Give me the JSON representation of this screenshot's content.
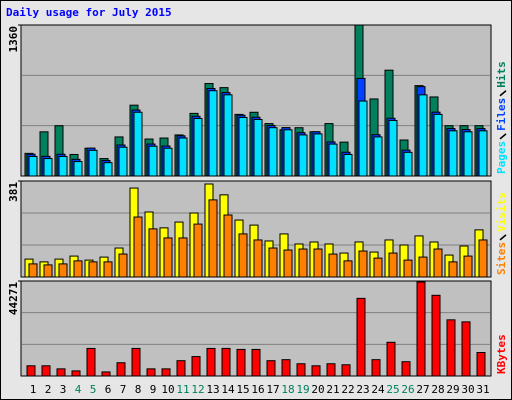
{
  "chart_data": [
    {
      "type": "bar",
      "title": "Daily usage for July 2015",
      "ylim": [
        0,
        1360
      ],
      "yticks": [
        1360
      ],
      "series": [
        {
          "name": "Hits",
          "color": "#00805c",
          "values": [
            204,
            398,
            453,
            194,
            250,
            157,
            352,
            638,
            333,
            342,
            370,
            564,
            833,
            796,
            555,
            574,
            472,
            416,
            435,
            398,
            472,
            305,
            1360,
            694,
            953,
            324,
            814,
            712,
            453,
            453,
            453
          ]
        },
        {
          "name": "Files",
          "color": "#0040ff",
          "values": [
            196,
            177,
            196,
            150,
            251,
            140,
            279,
            594,
            288,
            270,
            362,
            538,
            788,
            751,
            547,
            529,
            455,
            436,
            390,
            399,
            307,
            214,
            879,
            372,
            520,
            233,
            805,
            575,
            427,
            418,
            427
          ]
        },
        {
          "name": "Pages",
          "color": "#00e0ff",
          "values": [
            176,
            157,
            176,
            130,
            231,
            120,
            259,
            574,
            268,
            250,
            342,
            518,
            768,
            731,
            527,
            509,
            435,
            416,
            370,
            379,
            287,
            194,
            675,
            352,
            500,
            213,
            731,
            555,
            407,
            398,
            407
          ]
        }
      ]
    },
    {
      "type": "bar",
      "ylim": [
        0,
        381
      ],
      "yticks": [
        381
      ],
      "series": [
        {
          "name": "Visits",
          "color": "#ffff00",
          "values": [
            71,
            60,
            71,
            83,
            67,
            79,
            115,
            353,
            258,
            195,
            218,
            254,
            369,
            326,
            226,
            206,
            143,
            171,
            131,
            139,
            131,
            95,
            139,
            99,
            147,
            127,
            163,
            139,
            87,
            123,
            187
          ]
        },
        {
          "name": "Sites",
          "color": "#ff8000",
          "values": [
            52,
            48,
            52,
            64,
            60,
            60,
            91,
            238,
            191,
            155,
            155,
            210,
            306,
            246,
            171,
            147,
            115,
            107,
            111,
            111,
            91,
            64,
            103,
            75,
            95,
            67,
            79,
            111,
            60,
            83,
            147
          ]
        }
      ]
    },
    {
      "type": "bar",
      "ylim": [
        0,
        44271
      ],
      "yticks": [
        44271
      ],
      "categories": [
        "1",
        "2",
        "3",
        "4",
        "5",
        "6",
        "7",
        "8",
        "9",
        "10",
        "11",
        "12",
        "13",
        "14",
        "15",
        "16",
        "17",
        "18",
        "19",
        "20",
        "21",
        "22",
        "23",
        "24",
        "25",
        "26",
        "27",
        "28",
        "29",
        "30",
        "31"
      ],
      "category_colors": [
        "#000000",
        "#000000",
        "#000000",
        "#00805c",
        "#00805c",
        "#000000",
        "#000000",
        "#000000",
        "#000000",
        "#000000",
        "#00805c",
        "#00805c",
        "#000000",
        "#000000",
        "#000000",
        "#000000",
        "#000000",
        "#00805c",
        "#00805c",
        "#000000",
        "#000000",
        "#000000",
        "#000000",
        "#000000",
        "#00805c",
        "#00805c",
        "#000000",
        "#000000",
        "#000000",
        "#000000",
        "#000000"
      ],
      "series": [
        {
          "name": "KBytes",
          "color": "#ff0000",
          "values": [
            4760,
            4760,
            3332,
            2380,
            12852,
            1904,
            6188,
            12852,
            3332,
            3332,
            7140,
            9044,
            12852,
            12852,
            12376,
            12376,
            7140,
            7616,
            5712,
            4760,
            5712,
            5236,
            36176,
            7616,
            15708,
            6664,
            43792,
            37604,
            26180,
            25228,
            10948
          ]
        }
      ]
    }
  ]
}
